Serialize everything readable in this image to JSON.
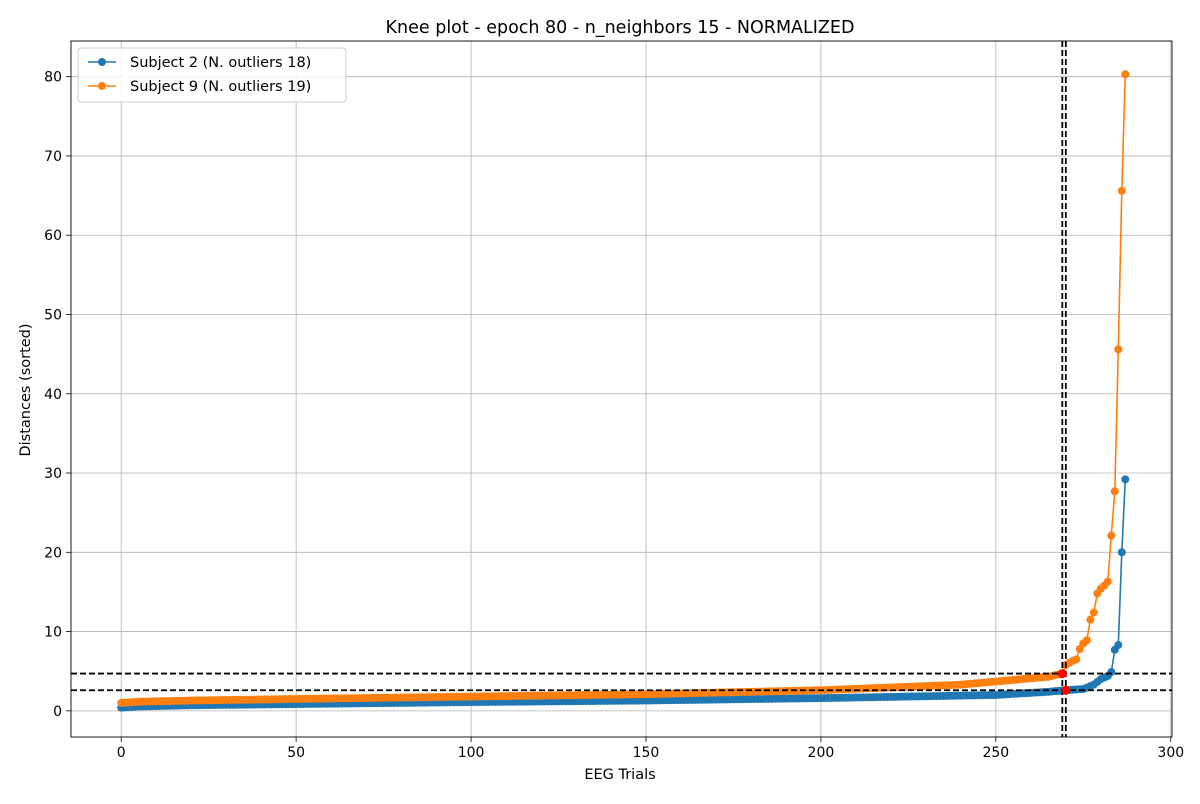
{
  "chart_data": {
    "type": "line",
    "title": "Knee plot - epoch 80 - n_neighbors 15 - NORMALIZED",
    "xlabel": "EEG Trials",
    "ylabel": "Distances (sorted)",
    "xlim": [
      -14.35,
      300.35
    ],
    "ylim": [
      -3.3,
      84.5
    ],
    "xticks": [
      0,
      50,
      100,
      150,
      200,
      250,
      300
    ],
    "yticks": [
      0,
      10,
      20,
      30,
      40,
      50,
      60,
      70,
      80
    ],
    "grid": true,
    "legend_position": "top-left",
    "series": [
      {
        "name": "Subject 2 (N. outliers 18)",
        "color": "#1f77b4",
        "count": 288,
        "anchors": [
          [
            0,
            0.4
          ],
          [
            5,
            0.55
          ],
          [
            20,
            0.7
          ],
          [
            50,
            0.85
          ],
          [
            100,
            1.1
          ],
          [
            150,
            1.3
          ],
          [
            200,
            1.6
          ],
          [
            250,
            2.0
          ],
          [
            265,
            2.4
          ],
          [
            270,
            2.6
          ],
          [
            275,
            2.75
          ],
          [
            278,
            3.3
          ],
          [
            280,
            4.0
          ],
          [
            282,
            4.4
          ],
          [
            283,
            4.9
          ],
          [
            284,
            7.7
          ],
          [
            285,
            8.3
          ],
          [
            286,
            20.0
          ],
          [
            287,
            29.2
          ]
        ],
        "knee": {
          "x": 270,
          "y": 2.6
        }
      },
      {
        "name": "Subject 9 (N. outliers 19)",
        "color": "#ff7f0e",
        "count": 288,
        "anchors": [
          [
            0,
            1.0
          ],
          [
            5,
            1.15
          ],
          [
            20,
            1.3
          ],
          [
            50,
            1.5
          ],
          [
            100,
            1.8
          ],
          [
            150,
            2.1
          ],
          [
            200,
            2.6
          ],
          [
            240,
            3.3
          ],
          [
            255,
            3.9
          ],
          [
            260,
            4.1
          ],
          [
            265,
            4.3
          ],
          [
            269,
            4.7
          ],
          [
            270,
            5.8
          ],
          [
            272,
            6.3
          ],
          [
            273,
            6.5
          ],
          [
            274,
            7.8
          ],
          [
            275,
            8.5
          ],
          [
            276,
            8.9
          ],
          [
            277,
            11.5
          ],
          [
            278,
            12.4
          ],
          [
            279,
            14.8
          ],
          [
            280,
            15.4
          ],
          [
            281,
            15.8
          ],
          [
            282,
            16.3
          ],
          [
            283,
            22.1
          ],
          [
            284,
            27.7
          ],
          [
            285,
            45.6
          ],
          [
            286,
            65.6
          ],
          [
            287,
            80.3
          ]
        ],
        "knee": {
          "x": 269,
          "y": 4.7
        }
      }
    ],
    "reference_lines": {
      "vertical": [
        269,
        270
      ],
      "horizontal": [
        2.6,
        4.7
      ],
      "color": "#000000",
      "style": "dashed"
    },
    "knee_marker_color": "#ff0000"
  }
}
